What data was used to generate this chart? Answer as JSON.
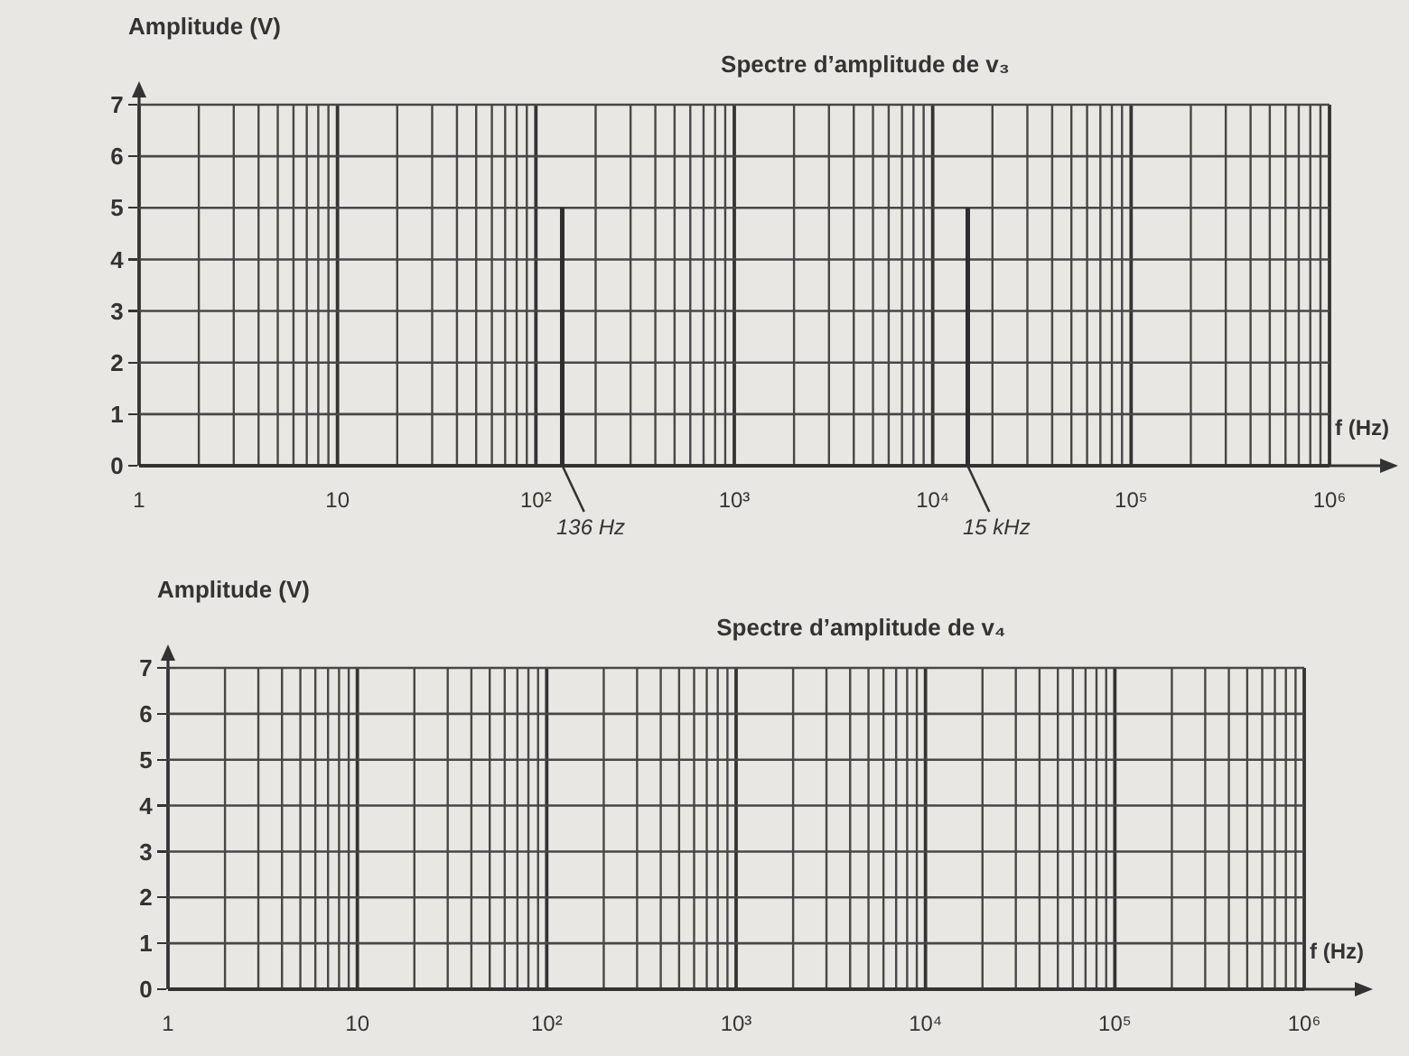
{
  "chart_data": [
    {
      "type": "bar",
      "title": "Spectre d’amplitude de v₃",
      "xlabel": "f (Hz)",
      "ylabel": "Amplitude (V)",
      "x": [
        136,
        15000
      ],
      "values": [
        5,
        5
      ],
      "color": "#2e2e2e",
      "log": "x",
      "xlim": [
        1,
        1000000
      ],
      "ylim": [
        0,
        7
      ],
      "xticks": [
        {
          "value": 1,
          "label": "1"
        },
        {
          "value": 2,
          "label": null
        },
        {
          "value": 3,
          "label": null
        },
        {
          "value": 4,
          "label": null
        },
        {
          "value": 5,
          "label": null
        },
        {
          "value": 6,
          "label": null
        },
        {
          "value": 7,
          "label": null
        },
        {
          "value": 8,
          "label": null
        },
        {
          "value": 9,
          "label": null
        },
        {
          "value": 10,
          "label": "10"
        },
        {
          "value": 20,
          "label": null
        },
        {
          "value": 30,
          "label": null
        },
        {
          "value": 40,
          "label": null
        },
        {
          "value": 50,
          "label": null
        },
        {
          "value": 60,
          "label": null
        },
        {
          "value": 70,
          "label": null
        },
        {
          "value": 80,
          "label": null
        },
        {
          "value": 90,
          "label": null
        },
        {
          "value": 100,
          "label": "10²"
        },
        {
          "value": 200,
          "label": null
        },
        {
          "value": 300,
          "label": null
        },
        {
          "value": 400,
          "label": null
        },
        {
          "value": 500,
          "label": null
        },
        {
          "value": 600,
          "label": null
        },
        {
          "value": 700,
          "label": null
        },
        {
          "value": 800,
          "label": null
        },
        {
          "value": 900,
          "label": null
        },
        {
          "value": 1000,
          "label": "10³"
        },
        {
          "value": 2000,
          "label": null
        },
        {
          "value": 3000,
          "label": null
        },
        {
          "value": 4000,
          "label": null
        },
        {
          "value": 5000,
          "label": null
        },
        {
          "value": 6000,
          "label": null
        },
        {
          "value": 7000,
          "label": null
        },
        {
          "value": 8000,
          "label": null
        },
        {
          "value": 9000,
          "label": null
        },
        {
          "value": 10000,
          "label": "10⁴"
        },
        {
          "value": 20000,
          "label": null
        },
        {
          "value": 30000,
          "label": null
        },
        {
          "value": 40000,
          "label": null
        },
        {
          "value": 50000,
          "label": null
        },
        {
          "value": 60000,
          "label": null
        },
        {
          "value": 70000,
          "label": null
        },
        {
          "value": 80000,
          "label": null
        },
        {
          "value": 90000,
          "label": null
        },
        {
          "value": 100000,
          "label": "10⁵"
        },
        {
          "value": 200000,
          "label": null
        },
        {
          "value": 300000,
          "label": null
        },
        {
          "value": 400000,
          "label": null
        },
        {
          "value": 500000,
          "label": null
        },
        {
          "value": 600000,
          "label": null
        },
        {
          "value": 700000,
          "label": null
        },
        {
          "value": 800000,
          "label": null
        },
        {
          "value": 900000,
          "label": null
        },
        {
          "value": 1000000,
          "label": "10⁶"
        }
      ],
      "yticks": [
        0,
        1,
        2,
        3,
        4,
        5,
        6,
        7
      ],
      "grid": true,
      "annotations": [
        {
          "text": "136 Hz",
          "x": 136,
          "y": 0
        },
        {
          "text": "15 kHz",
          "x": 15000,
          "y": 0
        }
      ]
    },
    {
      "type": "bar",
      "title": "Spectre d’amplitude de v₄",
      "xlabel": "f (Hz)",
      "ylabel": "Amplitude (V)",
      "log": "x",
      "xlim": [
        1,
        1000000
      ],
      "ylim": [
        0,
        7
      ],
      "xticks": [
        {
          "value": 1,
          "label": "1"
        },
        {
          "value": 2,
          "label": null
        },
        {
          "value": 3,
          "label": null
        },
        {
          "value": 4,
          "label": null
        },
        {
          "value": 5,
          "label": null
        },
        {
          "value": 6,
          "label": null
        },
        {
          "value": 7,
          "label": null
        },
        {
          "value": 8,
          "label": null
        },
        {
          "value": 9,
          "label": null
        },
        {
          "value": 10,
          "label": "10"
        },
        {
          "value": 20,
          "label": null
        },
        {
          "value": 30,
          "label": null
        },
        {
          "value": 40,
          "label": null
        },
        {
          "value": 50,
          "label": null
        },
        {
          "value": 60,
          "label": null
        },
        {
          "value": 70,
          "label": null
        },
        {
          "value": 80,
          "label": null
        },
        {
          "value": 90,
          "label": null
        },
        {
          "value": 100,
          "label": "10²"
        },
        {
          "value": 200,
          "label": null
        },
        {
          "value": 300,
          "label": null
        },
        {
          "value": 400,
          "label": null
        },
        {
          "value": 500,
          "label": null
        },
        {
          "value": 600,
          "label": null
        },
        {
          "value": 700,
          "label": null
        },
        {
          "value": 800,
          "label": null
        },
        {
          "value": 900,
          "label": null
        },
        {
          "value": 1000,
          "label": "10³"
        },
        {
          "value": 2000,
          "label": null
        },
        {
          "value": 3000,
          "label": null
        },
        {
          "value": 4000,
          "label": null
        },
        {
          "value": 5000,
          "label": null
        },
        {
          "value": 6000,
          "label": null
        },
        {
          "value": 7000,
          "label": null
        },
        {
          "value": 8000,
          "label": null
        },
        {
          "value": 9000,
          "label": null
        },
        {
          "value": 10000,
          "label": "10⁴"
        },
        {
          "value": 20000,
          "label": null
        },
        {
          "value": 30000,
          "label": null
        },
        {
          "value": 40000,
          "label": null
        },
        {
          "value": 50000,
          "label": null
        },
        {
          "value": 60000,
          "label": null
        },
        {
          "value": 70000,
          "label": null
        },
        {
          "value": 80000,
          "label": null
        },
        {
          "value": 90000,
          "label": null
        },
        {
          "value": 100000,
          "label": "10⁵"
        },
        {
          "value": 200000,
          "label": null
        },
        {
          "value": 300000,
          "label": null
        },
        {
          "value": 400000,
          "label": null
        },
        {
          "value": 500000,
          "label": null
        },
        {
          "value": 600000,
          "label": null
        },
        {
          "value": 700000,
          "label": null
        },
        {
          "value": 800000,
          "label": null
        },
        {
          "value": 900000,
          "label": null
        },
        {
          "value": 1000000,
          "label": "10⁶"
        }
      ],
      "yticks": [
        0,
        1,
        2,
        3,
        4,
        5,
        6,
        7
      ],
      "grid": true
    }
  ]
}
